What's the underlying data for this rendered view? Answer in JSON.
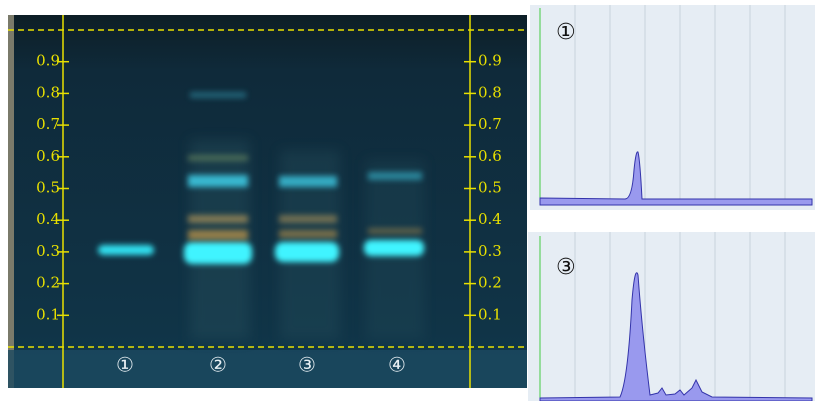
{
  "plate": {
    "rf_lim": [
      0,
      1
    ],
    "rf_ticks": [
      0.1,
      0.2,
      0.3,
      0.4,
      0.5,
      0.6,
      0.7,
      0.8,
      0.9
    ],
    "lanes": [
      "①",
      "②",
      "③",
      "④"
    ]
  },
  "panels": [
    {
      "label": "①"
    },
    {
      "label": "③"
    }
  ]
}
